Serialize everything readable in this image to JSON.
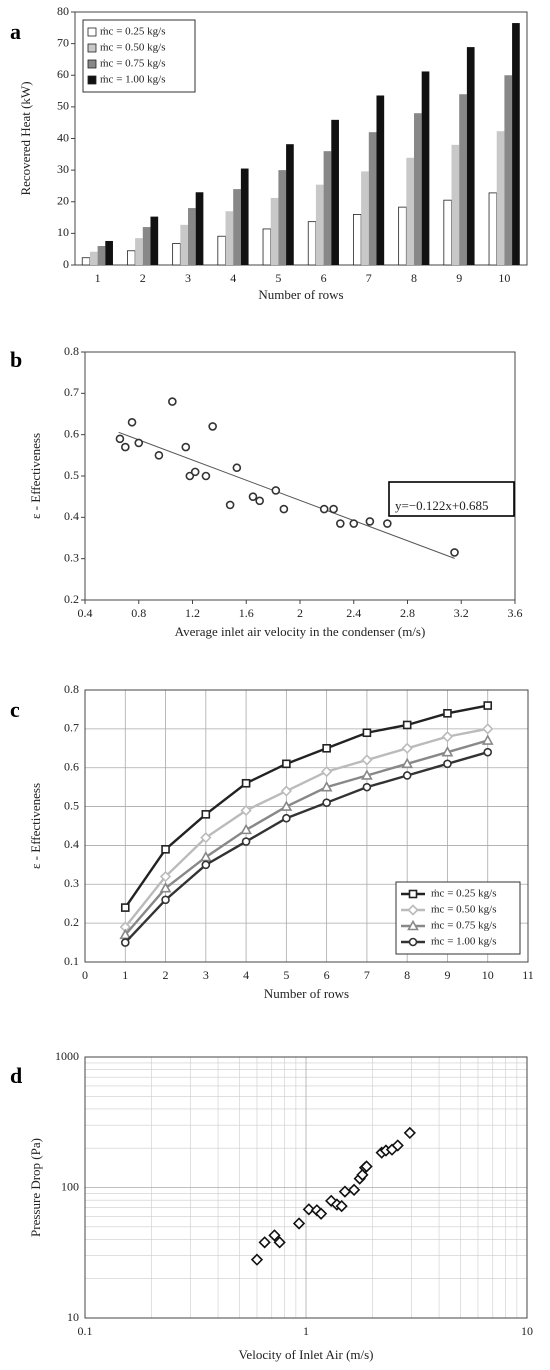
{
  "chart_data": [
    {
      "type": "bar",
      "panel": "a",
      "ylabel": "Recovered Heat (kW)",
      "xlabel": "Number of rows",
      "categories": [
        "1",
        "2",
        "3",
        "4",
        "5",
        "6",
        "7",
        "8",
        "9",
        "10"
      ],
      "series": [
        {
          "name": "ṁc = 0.25 kg/s",
          "color": "#ffffff",
          "values": [
            2.3,
            4.5,
            6.8,
            9.1,
            11.4,
            13.7,
            16,
            18.3,
            20.5,
            22.8
          ]
        },
        {
          "name": "ṁc = 0.50 kg/s",
          "color": "#c8c8c8",
          "values": [
            4.2,
            8.5,
            12.7,
            17,
            21.2,
            25.4,
            29.6,
            33.9,
            38,
            42.3
          ]
        },
        {
          "name": "ṁc = 0.75 kg/s",
          "color": "#888888",
          "values": [
            6,
            12,
            18,
            24,
            30,
            36,
            42,
            48,
            54,
            60
          ]
        },
        {
          "name": "ṁc = 1.00 kg/s",
          "color": "#111111",
          "values": [
            7.6,
            15.3,
            23,
            30.5,
            38.2,
            45.9,
            53.6,
            61.2,
            68.9,
            76.5
          ]
        }
      ],
      "ylim": [
        0,
        80
      ],
      "yticks": [
        0,
        10,
        20,
        30,
        40,
        50,
        60,
        70,
        80
      ],
      "grid": false,
      "legend": "upper left"
    },
    {
      "type": "scatter",
      "panel": "b",
      "ylabel": "ε - Effectiveness",
      "xlabel": "Average inlet air velocity in the condenser (m/s)",
      "x": [
        0.66,
        0.7,
        0.75,
        0.8,
        0.95,
        1.05,
        1.15,
        1.18,
        1.22,
        1.3,
        1.35,
        1.48,
        1.53,
        1.65,
        1.7,
        1.82,
        1.88,
        2.18,
        2.25,
        2.3,
        2.4,
        2.52,
        2.65,
        3.15
      ],
      "values": [
        0.59,
        0.57,
        0.63,
        0.58,
        0.55,
        0.68,
        0.57,
        0.5,
        0.51,
        0.5,
        0.62,
        0.43,
        0.52,
        0.45,
        0.44,
        0.465,
        0.42,
        0.42,
        0.42,
        0.385,
        0.385,
        0.39,
        0.385,
        0.315
      ],
      "color": "#333333",
      "marker": "circle",
      "trend": {
        "slope": -0.122,
        "intercept": 0.685,
        "xrange": [
          0.65,
          3.15
        ]
      },
      "annotation": "y=−0.122x+0.685",
      "xlim": [
        0.4,
        3.6
      ],
      "xticks": [
        0.4,
        0.8,
        1.2,
        1.6,
        2,
        2.4,
        2.8,
        3.2,
        3.6
      ],
      "ylim": [
        0.2,
        0.8
      ],
      "yticks": [
        0.2,
        0.3,
        0.4,
        0.5,
        0.6,
        0.7,
        0.8
      ],
      "grid": false
    },
    {
      "type": "line",
      "panel": "c",
      "ylabel": "ε - Effectiveness",
      "xlabel": "Number of rows",
      "x": [
        1,
        2,
        3,
        4,
        5,
        6,
        7,
        8,
        9,
        10
      ],
      "series": [
        {
          "name": "ṁc = 0.25 kg/s",
          "color": "#222222",
          "marker": "square",
          "values": [
            0.24,
            0.39,
            0.48,
            0.56,
            0.61,
            0.65,
            0.69,
            0.71,
            0.74,
            0.76
          ]
        },
        {
          "name": "ṁc = 0.50 kg/s",
          "color": "#bbbbbb",
          "marker": "diamond",
          "values": [
            0.19,
            0.32,
            0.42,
            0.49,
            0.54,
            0.59,
            0.62,
            0.65,
            0.68,
            0.7
          ]
        },
        {
          "name": "ṁc = 0.75 kg/s",
          "color": "#888888",
          "marker": "triangle",
          "values": [
            0.17,
            0.29,
            0.37,
            0.44,
            0.5,
            0.55,
            0.58,
            0.61,
            0.64,
            0.67
          ]
        },
        {
          "name": "ṁc = 1.00 kg/s",
          "color": "#333333",
          "marker": "circle",
          "values": [
            0.15,
            0.26,
            0.35,
            0.41,
            0.47,
            0.51,
            0.55,
            0.58,
            0.61,
            0.64
          ]
        }
      ],
      "xlim": [
        0,
        11
      ],
      "xticks": [
        0,
        1,
        2,
        3,
        4,
        5,
        6,
        7,
        8,
        9,
        10,
        11
      ],
      "ylim": [
        0.1,
        0.8
      ],
      "yticks": [
        0.1,
        0.2,
        0.3,
        0.4,
        0.5,
        0.6,
        0.7,
        0.8
      ],
      "grid": true,
      "legend": "lower right"
    },
    {
      "type": "scatter",
      "panel": "d",
      "ylabel": "Pressure Drop (Pa)",
      "xlabel": "Velocity of Inlet Air (m/s)",
      "x": [
        0.6,
        0.65,
        0.72,
        0.76,
        0.93,
        1.03,
        1.12,
        1.17,
        1.3,
        1.38,
        1.45,
        1.5,
        1.65,
        1.75,
        1.8,
        1.85,
        1.88,
        2.2,
        2.3,
        2.45,
        2.6,
        2.95
      ],
      "values": [
        28,
        38,
        43,
        38,
        53,
        68,
        67,
        63,
        79,
        74,
        72,
        93,
        96,
        117,
        125,
        142,
        145,
        185,
        192,
        195,
        210,
        262
      ],
      "color": "#111111",
      "marker": "diamond",
      "xlim": [
        0.1,
        10
      ],
      "xticks": [
        0.1,
        1,
        10
      ],
      "ylim": [
        10,
        1000
      ],
      "yticks": [
        10,
        100,
        1000
      ],
      "log": true,
      "grid": true,
      "minor_grid": true
    }
  ]
}
